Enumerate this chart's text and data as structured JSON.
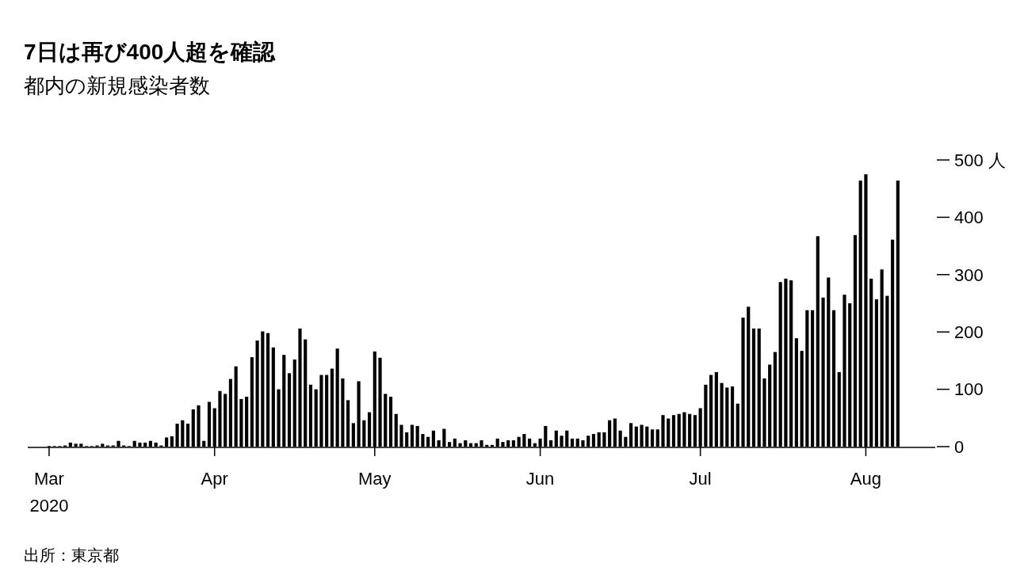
{
  "chart_data": {
    "type": "bar",
    "title": "7日は再び400人超を確認",
    "subtitle": "都内の新規感染者数",
    "annotations": [
      "出所：東京都"
    ],
    "color": "#000000",
    "grid": false,
    "x": [
      "2020-03-01",
      "2020-03-02",
      "2020-03-03",
      "2020-03-04",
      "2020-03-05",
      "2020-03-06",
      "2020-03-07",
      "2020-03-08",
      "2020-03-09",
      "2020-03-10",
      "2020-03-11",
      "2020-03-12",
      "2020-03-13",
      "2020-03-14",
      "2020-03-15",
      "2020-03-16",
      "2020-03-17",
      "2020-03-18",
      "2020-03-19",
      "2020-03-20",
      "2020-03-21",
      "2020-03-22",
      "2020-03-23",
      "2020-03-24",
      "2020-03-25",
      "2020-03-26",
      "2020-03-27",
      "2020-03-28",
      "2020-03-29",
      "2020-03-30",
      "2020-03-31",
      "2020-04-01",
      "2020-04-02",
      "2020-04-03",
      "2020-04-04",
      "2020-04-05",
      "2020-04-06",
      "2020-04-07",
      "2020-04-08",
      "2020-04-09",
      "2020-04-10",
      "2020-04-11",
      "2020-04-12",
      "2020-04-13",
      "2020-04-14",
      "2020-04-15",
      "2020-04-16",
      "2020-04-17",
      "2020-04-18",
      "2020-04-19",
      "2020-04-20",
      "2020-04-21",
      "2020-04-22",
      "2020-04-23",
      "2020-04-24",
      "2020-04-25",
      "2020-04-26",
      "2020-04-27",
      "2020-04-28",
      "2020-04-29",
      "2020-04-30",
      "2020-05-01",
      "2020-05-02",
      "2020-05-03",
      "2020-05-04",
      "2020-05-05",
      "2020-05-06",
      "2020-05-07",
      "2020-05-08",
      "2020-05-09",
      "2020-05-10",
      "2020-05-11",
      "2020-05-12",
      "2020-05-13",
      "2020-05-14",
      "2020-05-15",
      "2020-05-16",
      "2020-05-17",
      "2020-05-18",
      "2020-05-19",
      "2020-05-20",
      "2020-05-21",
      "2020-05-22",
      "2020-05-23",
      "2020-05-24",
      "2020-05-25",
      "2020-05-26",
      "2020-05-27",
      "2020-05-28",
      "2020-05-29",
      "2020-05-30",
      "2020-05-31",
      "2020-06-01",
      "2020-06-02",
      "2020-06-03",
      "2020-06-04",
      "2020-06-05",
      "2020-06-06",
      "2020-06-07",
      "2020-06-08",
      "2020-06-09",
      "2020-06-10",
      "2020-06-11",
      "2020-06-12",
      "2020-06-13",
      "2020-06-14",
      "2020-06-15",
      "2020-06-16",
      "2020-06-17",
      "2020-06-18",
      "2020-06-19",
      "2020-06-20",
      "2020-06-21",
      "2020-06-22",
      "2020-06-23",
      "2020-06-24",
      "2020-06-25",
      "2020-06-26",
      "2020-06-27",
      "2020-06-28",
      "2020-06-29",
      "2020-06-30",
      "2020-07-01",
      "2020-07-02",
      "2020-07-03",
      "2020-07-04",
      "2020-07-05",
      "2020-07-06",
      "2020-07-07",
      "2020-07-08",
      "2020-07-09",
      "2020-07-10",
      "2020-07-11",
      "2020-07-12",
      "2020-07-13",
      "2020-07-14",
      "2020-07-15",
      "2020-07-16",
      "2020-07-17",
      "2020-07-18",
      "2020-07-19",
      "2020-07-20",
      "2020-07-21",
      "2020-07-22",
      "2020-07-23",
      "2020-07-24",
      "2020-07-25",
      "2020-07-26",
      "2020-07-27",
      "2020-07-28",
      "2020-07-29",
      "2020-07-30",
      "2020-07-31",
      "2020-08-01",
      "2020-08-02",
      "2020-08-03",
      "2020-08-04",
      "2020-08-05",
      "2020-08-06",
      "2020-08-07"
    ],
    "values": [
      1,
      1,
      1,
      2,
      7,
      5,
      5,
      1,
      1,
      2,
      5,
      2,
      2,
      10,
      2,
      1,
      10,
      7,
      7,
      10,
      7,
      2,
      16,
      18,
      40,
      46,
      40,
      65,
      72,
      10,
      78,
      67,
      97,
      92,
      118,
      140,
      83,
      87,
      156,
      185,
      201,
      198,
      173,
      100,
      160,
      128,
      152,
      206,
      187,
      108,
      100,
      125,
      125,
      136,
      171,
      119,
      81,
      41,
      114,
      46,
      60,
      166,
      155,
      92,
      87,
      57,
      38,
      25,
      38,
      36,
      22,
      17,
      28,
      11,
      31,
      8,
      14,
      6,
      11,
      6,
      6,
      11,
      3,
      3,
      14,
      8,
      11,
      11,
      17,
      22,
      14,
      6,
      14,
      36,
      11,
      28,
      19,
      28,
      14,
      14,
      11,
      19,
      22,
      25,
      25,
      46,
      49,
      28,
      17,
      41,
      35,
      38,
      35,
      30,
      30,
      55,
      49,
      55,
      57,
      60,
      57,
      55,
      67,
      108,
      125,
      130,
      111,
      103,
      105,
      75,
      225,
      244,
      206,
      206,
      119,
      143,
      165,
      287,
      293,
      290,
      189,
      167,
      238,
      238,
      367,
      260,
      295,
      238,
      130,
      265,
      250,
      369,
      464,
      475,
      293,
      257,
      309,
      263,
      361,
      464
    ],
    "xlim": [
      "2020-02-26",
      "2020-08-14"
    ],
    "xticks": [
      {
        "value": "2020-03-01",
        "label": "Mar\n2020"
      },
      {
        "value": "2020-04-01",
        "label": "Apr"
      },
      {
        "value": "2020-05-01",
        "label": "May"
      },
      {
        "value": "2020-06-01",
        "label": "Jun"
      },
      {
        "value": "2020-07-01",
        "label": "Jul"
      },
      {
        "value": "2020-08-01",
        "label": "Aug"
      }
    ],
    "ylim": [
      0,
      500
    ],
    "yticks": [
      0,
      100,
      200,
      300,
      400,
      {
        "value": 500,
        "label": "500 人"
      }
    ]
  }
}
